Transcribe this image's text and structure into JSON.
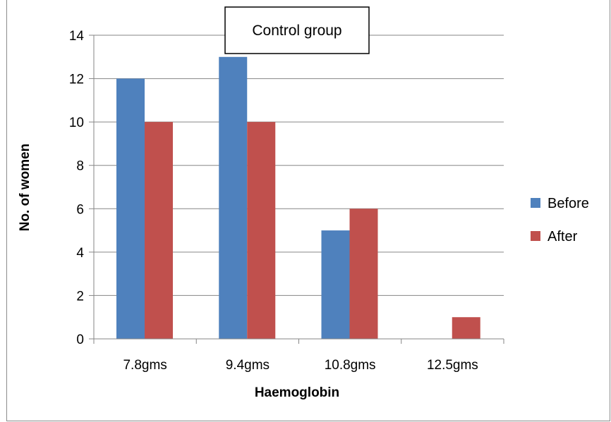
{
  "chart_data": {
    "type": "bar",
    "title": "Control group",
    "xlabel": "Haemoglobin",
    "ylabel": "No. of women",
    "categories": [
      "7.8gms",
      "9.4gms",
      "10.8gms",
      "12.5gms"
    ],
    "series": [
      {
        "name": "Before",
        "values": [
          12,
          13,
          5,
          0
        ],
        "color": "#4f81bd"
      },
      {
        "name": "After",
        "values": [
          10,
          10,
          6,
          1
        ],
        "color": "#c0504d"
      }
    ],
    "ylim": [
      0,
      14
    ],
    "yticks": [
      0,
      2,
      4,
      6,
      8,
      10,
      12,
      14
    ],
    "grid": true,
    "legend_position": "right"
  }
}
